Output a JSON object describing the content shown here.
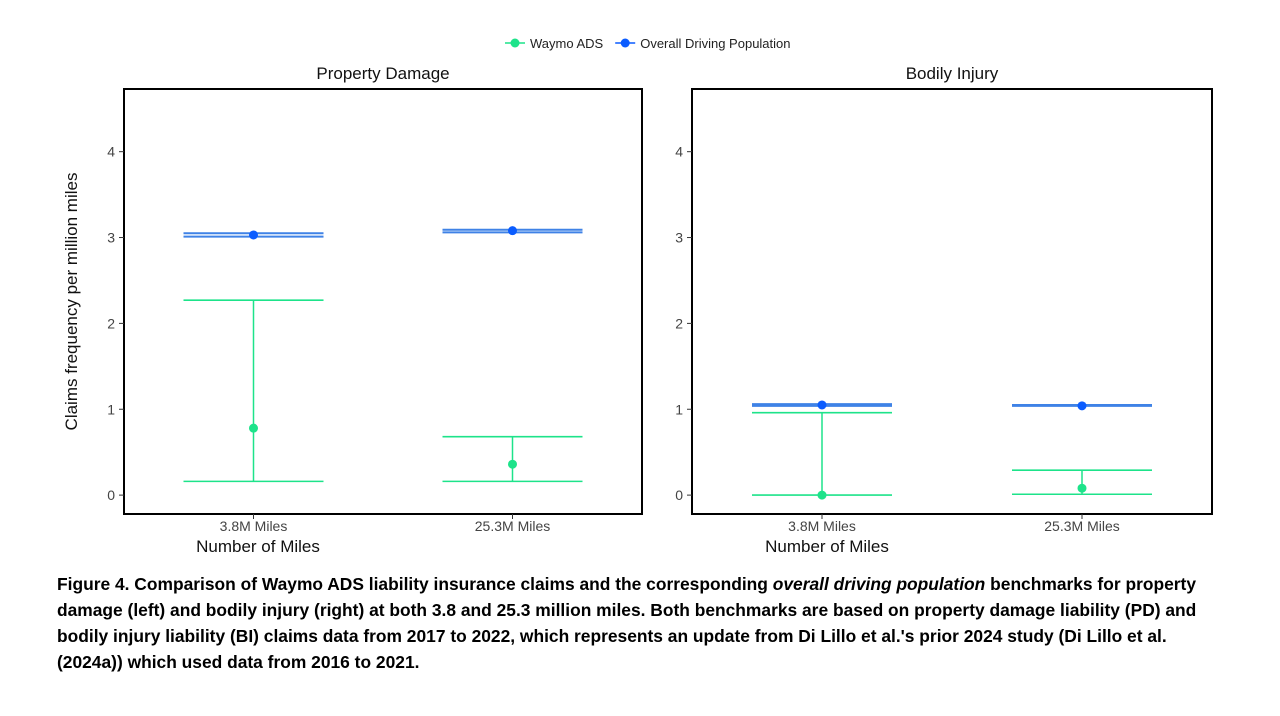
{
  "legend": {
    "position": "top",
    "items": [
      {
        "label": "Waymo ADS",
        "color": "#1de38a"
      },
      {
        "label": "Overall Driving Population",
        "color": "#0a5cff"
      }
    ]
  },
  "colors": {
    "waymo": "#1de38a",
    "benchmark_point": "#0a5cff",
    "benchmark_ci": "#3f82e6"
  },
  "chart_data": [
    {
      "type": "errorbar",
      "title": "Property Damage",
      "xlabel": "Number of Miles",
      "ylabel": "Claims frequency per million miles",
      "ylim": [
        -0.22,
        4.73
      ],
      "yticks": [
        0,
        1,
        2,
        3,
        4
      ],
      "categories": [
        "3.8M Miles",
        "25.3M Miles"
      ],
      "grid": false,
      "series": [
        {
          "name": "Waymo ADS",
          "values": [
            0.78,
            0.36
          ],
          "lower": [
            0.16,
            0.16
          ],
          "upper": [
            2.27,
            0.68
          ]
        },
        {
          "name": "Overall Driving Population",
          "values": [
            3.03,
            3.08
          ],
          "lower": [
            3.01,
            3.06
          ],
          "upper": [
            3.05,
            3.09
          ]
        }
      ]
    },
    {
      "type": "errorbar",
      "title": "Bodily Injury",
      "xlabel": "Number of Miles",
      "ylabel": "",
      "ylim": [
        -0.22,
        4.73
      ],
      "yticks": [
        0,
        1,
        2,
        3,
        4
      ],
      "categories": [
        "3.8M Miles",
        "25.3M Miles"
      ],
      "grid": false,
      "series": [
        {
          "name": "Waymo ADS",
          "values": [
            0.0,
            0.08
          ],
          "lower": [
            0.0,
            0.01
          ],
          "upper": [
            0.96,
            0.29
          ]
        },
        {
          "name": "Overall Driving Population",
          "values": [
            1.05,
            1.04
          ],
          "lower": [
            1.04,
            1.04
          ],
          "upper": [
            1.06,
            1.05
          ]
        }
      ]
    }
  ],
  "caption": {
    "pre": "Figure 4. Comparison of Waymo ADS liability insurance claims and the corresponding ",
    "italic": "overall driving population",
    "post": " benchmarks for property damage (left) and bodily injury (right) at both 3.8 and 25.3 million miles. Both benchmarks are based on property damage liability (PD) and bodily injury liability (BI) claims data from 2017 to 2022, which represents an update from Di Lillo et al.'s prior 2024 study (Di Lillo et al. (2024a)) which used data from 2016 to 2021."
  }
}
